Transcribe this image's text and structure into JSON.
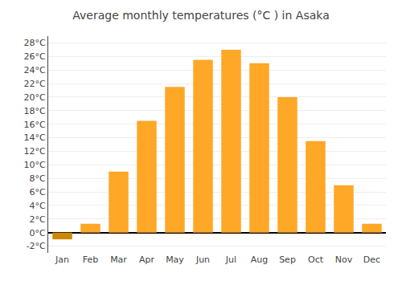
{
  "chart_data": {
    "type": "bar",
    "title": "Average monthly temperatures (°C ) in Asaka",
    "categories": [
      "Jan",
      "Feb",
      "Mar",
      "Apr",
      "May",
      "Jun",
      "Jul",
      "Aug",
      "Sep",
      "Oct",
      "Nov",
      "Dec"
    ],
    "values": [
      -1.0,
      1.3,
      9.0,
      16.5,
      21.5,
      25.5,
      27.0,
      25.0,
      20.0,
      13.5,
      7.0,
      1.3
    ],
    "colors": [
      "#CC8800",
      "#FFA726",
      "#FFA726",
      "#FFA726",
      "#FFA726",
      "#FFA726",
      "#FFA726",
      "#FFA726",
      "#FFA726",
      "#FFA726",
      "#FFA726",
      "#FFA726"
    ],
    "ylim": [
      -3,
      29
    ],
    "yticks": [
      {
        "value": -2,
        "label": "-2°C"
      },
      {
        "value": 0,
        "label": "0°C"
      },
      {
        "value": 2,
        "label": "2°C"
      },
      {
        "value": 4,
        "label": "4°C"
      },
      {
        "value": 6,
        "label": "6°C"
      },
      {
        "value": 8,
        "label": "8°C"
      },
      {
        "value": 10,
        "label": "10°C"
      },
      {
        "value": 12,
        "label": "12°C"
      },
      {
        "value": 14,
        "label": "14°C"
      },
      {
        "value": 16,
        "label": "16°C"
      },
      {
        "value": 18,
        "label": "18°C"
      },
      {
        "value": 20,
        "label": "20°C"
      },
      {
        "value": 22,
        "label": "22°C"
      },
      {
        "value": 24,
        "label": "24°C"
      },
      {
        "value": 26,
        "label": "26°C"
      },
      {
        "value": 28,
        "label": "28°C"
      }
    ],
    "grid": true
  }
}
